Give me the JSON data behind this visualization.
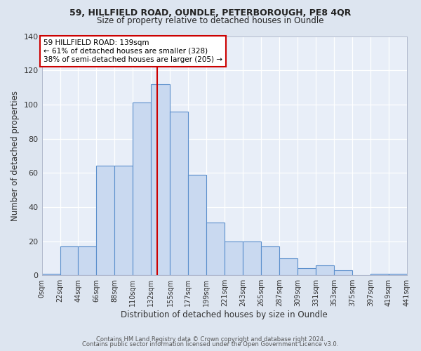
{
  "title1": "59, HILLFIELD ROAD, OUNDLE, PETERBOROUGH, PE8 4QR",
  "title2": "Size of property relative to detached houses in Oundle",
  "xlabel": "Distribution of detached houses by size in Oundle",
  "ylabel": "Number of detached properties",
  "bin_edges": [
    0,
    22,
    44,
    66,
    88,
    110,
    132,
    155,
    177,
    199,
    221,
    243,
    265,
    287,
    309,
    331,
    353,
    375,
    397,
    419,
    441
  ],
  "bar_heights": [
    1,
    17,
    17,
    64,
    64,
    101,
    112,
    96,
    59,
    31,
    20,
    20,
    17,
    10,
    4,
    6,
    3,
    0,
    1,
    1
  ],
  "bar_color": "#c9d9f0",
  "bar_edge_color": "#5b8fcc",
  "vline_x": 139,
  "vline_color": "#cc0000",
  "annotation_line1": "59 HILLFIELD ROAD: 139sqm",
  "annotation_line2": "← 61% of detached houses are smaller (328)",
  "annotation_line3": "38% of semi-detached houses are larger (205) →",
  "annotation_box_color": "#cc0000",
  "ylim": [
    0,
    140
  ],
  "xlim": [
    0,
    441
  ],
  "xtick_positions": [
    0,
    22,
    44,
    66,
    88,
    110,
    132,
    155,
    177,
    199,
    221,
    243,
    265,
    287,
    309,
    331,
    353,
    375,
    397,
    419,
    441
  ],
  "xtick_labels": [
    "0sqm",
    "22sqm",
    "44sqm",
    "66sqm",
    "88sqm",
    "110sqm",
    "132sqm",
    "155sqm",
    "177sqm",
    "199sqm",
    "221sqm",
    "243sqm",
    "265sqm",
    "287sqm",
    "309sqm",
    "331sqm",
    "353sqm",
    "375sqm",
    "397sqm",
    "419sqm",
    "441sqm"
  ],
  "ytick_positions": [
    0,
    20,
    40,
    60,
    80,
    100,
    120,
    140
  ],
  "footer1": "Contains HM Land Registry data © Crown copyright and database right 2024.",
  "footer2": "Contains public sector information licensed under the Open Government Licence v3.0.",
  "fig_bg_color": "#dde5f0",
  "plot_bg_color": "#e8eef8"
}
